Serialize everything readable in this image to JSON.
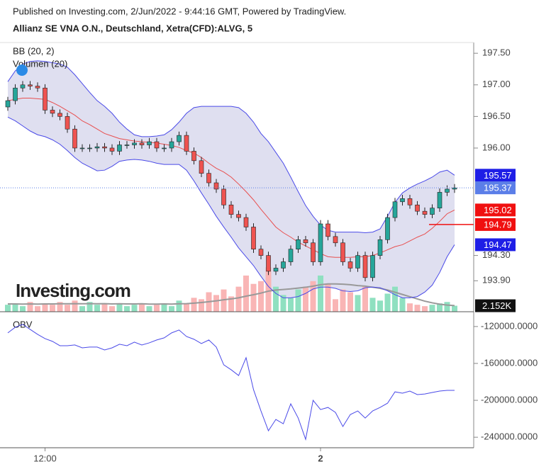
{
  "header": {
    "published": "Published on Investing.com, 2/Jun/2022 - 9:44:16 GMT, Powered by TradingView.",
    "title": "Allianz SE VNA O.N., Deutschland, Xetra(CFD):ALVG, 5"
  },
  "chart_data": [
    {
      "type": "candlestick",
      "legend": [
        "BB (20, 2)",
        "Volumen (20)"
      ],
      "watermark": "Investing.com",
      "categories": [
        null,
        null,
        null,
        null,
        null,
        "12:00",
        null,
        null,
        null,
        null,
        null,
        null,
        null,
        null,
        null,
        null,
        null,
        null,
        null,
        null,
        null,
        null,
        null,
        null,
        null,
        null,
        null,
        null,
        null,
        null,
        null,
        null,
        null,
        null,
        null,
        null,
        null,
        null,
        null,
        null,
        null,
        null,
        "2",
        null,
        null,
        null,
        null,
        null,
        null,
        null,
        null,
        null,
        null,
        null,
        null,
        null,
        null,
        null,
        null,
        null,
        null
      ],
      "open": [
        196.65,
        196.75,
        196.95,
        197.0,
        196.98,
        196.95,
        196.6,
        196.55,
        196.5,
        196.3,
        196.0,
        196.0,
        196.0,
        196.02,
        196.0,
        195.95,
        196.05,
        196.05,
        196.08,
        196.05,
        196.1,
        196.0,
        196.0,
        196.1,
        196.2,
        195.95,
        195.8,
        195.6,
        195.45,
        195.35,
        195.1,
        194.95,
        194.9,
        194.75,
        194.4,
        194.3,
        194.05,
        194.1,
        194.2,
        194.4,
        194.55,
        194.5,
        194.2,
        194.8,
        194.6,
        194.5,
        194.2,
        194.1,
        194.3,
        193.95,
        194.3,
        194.55,
        194.9,
        195.15,
        195.2,
        195.1,
        195.0,
        194.95,
        195.05,
        195.3,
        195.35
      ],
      "high": [
        196.81,
        197.01,
        197.06,
        197.06,
        197.04,
        197.01,
        196.66,
        196.61,
        196.56,
        196.36,
        196.06,
        196.06,
        196.08,
        196.08,
        196.06,
        196.11,
        196.11,
        196.14,
        196.14,
        196.16,
        196.16,
        196.06,
        196.16,
        196.26,
        196.26,
        196.01,
        195.86,
        195.66,
        195.51,
        195.41,
        195.16,
        195.01,
        194.96,
        194.81,
        194.46,
        194.36,
        194.16,
        194.26,
        194.46,
        194.61,
        194.61,
        194.56,
        194.86,
        194.86,
        194.66,
        194.56,
        194.26,
        194.36,
        194.36,
        194.36,
        194.61,
        194.96,
        195.21,
        195.26,
        195.26,
        195.16,
        195.06,
        195.11,
        195.36,
        195.41,
        195.43
      ],
      "low": [
        196.59,
        196.69,
        196.89,
        196.92,
        196.89,
        196.54,
        196.49,
        196.44,
        196.24,
        195.94,
        195.94,
        195.94,
        195.94,
        195.94,
        195.89,
        195.89,
        195.99,
        195.99,
        195.99,
        195.99,
        195.94,
        195.94,
        195.94,
        196.04,
        195.89,
        195.74,
        195.54,
        195.39,
        195.29,
        195.04,
        194.89,
        194.84,
        194.69,
        194.34,
        194.24,
        193.99,
        193.99,
        194.04,
        194.14,
        194.34,
        194.44,
        194.14,
        194.14,
        194.54,
        194.44,
        194.14,
        194.04,
        194.04,
        193.89,
        193.89,
        194.24,
        194.49,
        194.84,
        195.09,
        195.04,
        194.94,
        194.89,
        194.89,
        194.99,
        195.24,
        195.29
      ],
      "close": [
        196.75,
        196.95,
        197.0,
        196.98,
        196.95,
        196.6,
        196.55,
        196.5,
        196.3,
        196.0,
        196.0,
        196.0,
        196.02,
        196.0,
        195.95,
        196.05,
        196.05,
        196.08,
        196.05,
        196.1,
        196.0,
        196.0,
        196.1,
        196.2,
        195.95,
        195.8,
        195.6,
        195.45,
        195.35,
        195.1,
        194.95,
        194.9,
        194.75,
        194.4,
        194.3,
        194.05,
        194.1,
        194.2,
        194.4,
        194.55,
        194.5,
        194.2,
        194.8,
        194.6,
        194.5,
        194.2,
        194.1,
        194.3,
        193.95,
        194.3,
        194.55,
        194.9,
        195.15,
        195.2,
        195.1,
        195.0,
        194.95,
        195.05,
        195.3,
        195.35,
        195.37
      ],
      "up_color": "#26a69a",
      "down_color": "#ef5350",
      "bollinger": {
        "upper": [
          197.05,
          197.22,
          197.33,
          197.37,
          197.38,
          197.37,
          197.35,
          197.33,
          197.28,
          197.16,
          197.02,
          196.88,
          196.75,
          196.66,
          196.55,
          196.41,
          196.3,
          196.21,
          196.18,
          196.18,
          196.19,
          196.21,
          196.29,
          196.41,
          196.55,
          196.64,
          196.66,
          196.66,
          196.66,
          196.66,
          196.66,
          196.64,
          196.55,
          196.41,
          196.23,
          196.1,
          195.93,
          195.76,
          195.54,
          195.31,
          195.09,
          194.92,
          194.78,
          194.7,
          194.67,
          194.67,
          194.67,
          194.67,
          194.66,
          194.67,
          194.72,
          194.92,
          195.14,
          195.29,
          195.37,
          195.43,
          195.48,
          195.54,
          195.62,
          195.65,
          195.57
        ],
        "middle": [
          196.75,
          196.77,
          196.79,
          196.79,
          196.78,
          196.77,
          196.72,
          196.66,
          196.59,
          196.52,
          196.43,
          196.37,
          196.3,
          196.23,
          196.19,
          196.15,
          196.13,
          196.11,
          196.1,
          196.09,
          196.08,
          196.06,
          196.04,
          196.01,
          195.96,
          195.92,
          195.85,
          195.76,
          195.68,
          195.62,
          195.54,
          195.43,
          195.31,
          195.18,
          195.03,
          194.89,
          194.75,
          194.66,
          194.59,
          194.51,
          194.45,
          194.39,
          194.33,
          194.28,
          194.27,
          194.27,
          194.27,
          194.28,
          194.28,
          194.3,
          194.34,
          194.39,
          194.44,
          194.47,
          194.53,
          194.59,
          194.64,
          194.73,
          194.84,
          194.96,
          195.02
        ],
        "lower": [
          196.49,
          196.43,
          196.35,
          196.27,
          196.21,
          196.18,
          196.13,
          196.06,
          195.96,
          195.85,
          195.76,
          195.7,
          195.64,
          195.65,
          195.71,
          195.79,
          195.81,
          195.82,
          195.81,
          195.79,
          195.76,
          195.74,
          195.74,
          195.74,
          195.65,
          195.48,
          195.29,
          195.11,
          194.92,
          194.75,
          194.59,
          194.42,
          194.28,
          194.14,
          193.97,
          193.81,
          193.7,
          193.63,
          193.63,
          193.65,
          193.7,
          193.77,
          193.8,
          193.8,
          193.78,
          193.74,
          193.73,
          193.74,
          193.79,
          193.8,
          193.79,
          193.74,
          193.68,
          193.63,
          193.63,
          193.65,
          193.72,
          193.83,
          194.03,
          194.28,
          194.47
        ],
        "band_color": "#4a4ae8",
        "middle_color": "#e85050",
        "fill": "#dfdff0"
      },
      "volume": {
        "values": [
          2500,
          3000,
          2000,
          3500,
          2000,
          3000,
          2500,
          3500,
          2500,
          4000,
          2000,
          3500,
          2500,
          3000,
          2000,
          3000,
          2000,
          2500,
          3000,
          2000,
          2500,
          3000,
          2000,
          4000,
          3000,
          5000,
          4500,
          7000,
          6000,
          8000,
          5500,
          9000,
          13000,
          10000,
          11000,
          16000,
          9000,
          6000,
          5000,
          8000,
          9000,
          11000,
          13000,
          10000,
          4500,
          8000,
          7000,
          6000,
          9000,
          5000,
          4000,
          6500,
          9000,
          5000,
          3000,
          2500,
          2000,
          2500,
          3000,
          3500,
          2152
        ],
        "ma": [
          2800,
          2800,
          2750,
          2800,
          2750,
          2800,
          2800,
          2850,
          2850,
          2900,
          2850,
          2900,
          2850,
          2900,
          2800,
          2850,
          2800,
          2800,
          2850,
          2750,
          2750,
          2800,
          2750,
          2850,
          2900,
          3100,
          3300,
          3600,
          3900,
          4300,
          4600,
          5000,
          5600,
          6100,
          6700,
          7400,
          7800,
          8000,
          8200,
          8500,
          8800,
          9200,
          9700,
          10000,
          10000,
          9900,
          9700,
          9400,
          9200,
          8800,
          8400,
          7800,
          7000,
          6200,
          5400,
          4600,
          3800,
          3200,
          2700,
          2400,
          2200
        ],
        "up_color": "#8fe0c0",
        "down_color": "#f9b5b5",
        "ma_color": "#999999",
        "vlim": [
          0,
          28000
        ],
        "last_label": {
          "value": 2152,
          "label": "2.152K"
        }
      },
      "ylim": [
        193.41,
        197.67
      ],
      "yticks": [
        {
          "value": 197.5,
          "label": "197.50"
        },
        {
          "value": 197,
          "label": "197.00"
        },
        {
          "value": 196.5,
          "label": "196.50"
        },
        {
          "value": 196,
          "label": "196.00"
        },
        {
          "value": 194.3,
          "label": "194.30"
        },
        {
          "value": 193.9,
          "label": "193.90"
        }
      ],
      "price_labels": [
        {
          "value": 195.57,
          "color": "#1e1ee6"
        },
        {
          "value": 195.37,
          "color": "#5b7ee8"
        },
        {
          "value": 195.02,
          "color": "#f01010"
        },
        {
          "value": 194.79,
          "color": "#f01010"
        },
        {
          "value": 194.47,
          "color": "#1e1ee6"
        }
      ]
    },
    {
      "type": "line",
      "title": "OBV",
      "color": "#4a4ae8",
      "values": [
        -126900,
        -120800,
        -117700,
        -123100,
        -128500,
        -133100,
        -136100,
        -140800,
        -140800,
        -140000,
        -143100,
        -142300,
        -142300,
        -145400,
        -143100,
        -139200,
        -140800,
        -136900,
        -140000,
        -137700,
        -134600,
        -132300,
        -126900,
        -123800,
        -130800,
        -133800,
        -138500,
        -134600,
        -142300,
        -161500,
        -166900,
        -173100,
        -153800,
        -188400,
        -211500,
        -233000,
        -220700,
        -225400,
        -203800,
        -219200,
        -242300,
        -200000,
        -210000,
        -207700,
        -213100,
        -228400,
        -215400,
        -211500,
        -219200,
        -211500,
        -207700,
        -203100,
        -190800,
        -192300,
        -190000,
        -193800,
        -193100,
        -191500,
        -190000,
        -189200,
        -189200
      ],
      "ylim": [
        -251400,
        -107800
      ],
      "yticks": [
        {
          "value": -120000,
          "label": "-120000.0000"
        },
        {
          "value": -160000,
          "label": "-160000.0000"
        },
        {
          "value": -200000,
          "label": "-200000.0000"
        },
        {
          "value": -240000,
          "label": "-240000.0000"
        }
      ]
    }
  ]
}
